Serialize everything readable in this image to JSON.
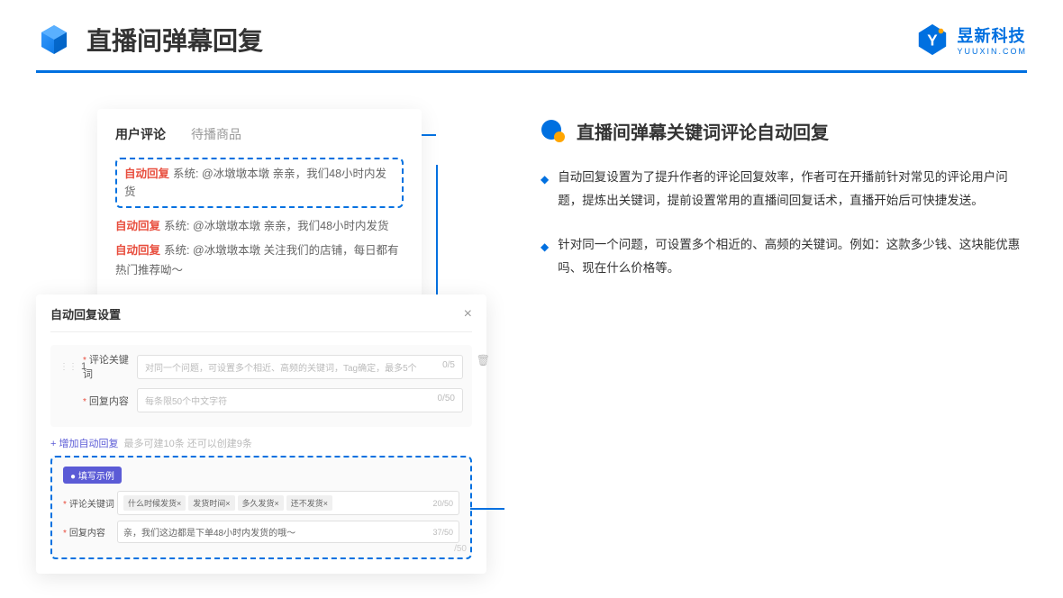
{
  "header": {
    "title": "直播间弹幕回复",
    "logo_main": "昱新科技",
    "logo_sub": "YUUXIN.COM"
  },
  "card1": {
    "tab_active": "用户评论",
    "tab_inactive": "待播商品",
    "auto_tag": "自动回复",
    "highlight_text": "系统: @冰墩墩本墩 亲亲，我们48小时内发货",
    "line2": "系统: @冰墩墩本墩 亲亲，我们48小时内发货",
    "line3": "系统: @冰墩墩本墩 关注我们的店铺，每日都有热门推荐呦～"
  },
  "card2": {
    "title": "自动回复设置",
    "num": "1",
    "label_keyword": "评论关键词",
    "placeholder_keyword": "对同一个问题，可设置多个相近、高频的关键词，Tag确定，最多5个",
    "count_keyword": "0/5",
    "label_content": "回复内容",
    "placeholder_content": "每条限50个中文字符",
    "count_content": "0/50",
    "add_text": "+ 增加自动回复",
    "add_hint": "最多可建10条 还可以创建9条",
    "example_badge": "● 填写示例",
    "ex_label1": "评论关键词",
    "ex_tags": [
      "什么时候发货×",
      "发货时间×",
      "多久发货×",
      "还不发货×"
    ],
    "ex_count1": "20/50",
    "ex_label2": "回复内容",
    "ex_text2": "亲，我们这边都是下单48小时内发货的哦～",
    "ex_count2": "37/50",
    "stray": "/50"
  },
  "right": {
    "section_title": "直播间弹幕关键词评论自动回复",
    "para1": "自动回复设置为了提升作者的评论回复效率，作者可在开播前针对常见的评论用户问题，提炼出关键词，提前设置常用的直播间回复话术，直播开始后可快捷发送。",
    "para2": "针对同一个问题，可设置多个相近的、高频的关键词。例如：这款多少钱、这块能优惠吗、现在什么价格等。"
  },
  "colors": {
    "primary": "#0070e0",
    "accent_red": "#e84d3d",
    "accent_orange": "#ffa500"
  }
}
